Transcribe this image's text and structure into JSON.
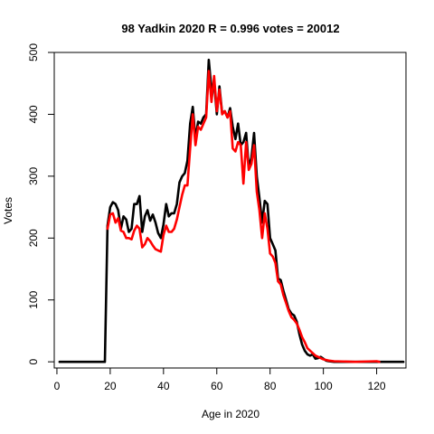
{
  "chart_data": {
    "type": "line",
    "title": "98 Yadkin 2020 R = 0.996 votes = 20012",
    "xlabel": "Age in 2020",
    "ylabel": "Votes",
    "xlim": [
      -1,
      131
    ],
    "ylim": [
      -10,
      500
    ],
    "x_ticks": [
      0,
      20,
      40,
      60,
      80,
      100,
      120
    ],
    "y_ticks": [
      0,
      100,
      200,
      300,
      400,
      500
    ],
    "grid": false,
    "legend": "none",
    "series": [
      {
        "color": "#000000",
        "points": [
          [
            1,
            0
          ],
          [
            18,
            0
          ],
          [
            19,
            220
          ],
          [
            20,
            250
          ],
          [
            21,
            258
          ],
          [
            22,
            255
          ],
          [
            23,
            245
          ],
          [
            24,
            215
          ],
          [
            25,
            235
          ],
          [
            26,
            230
          ],
          [
            27,
            210
          ],
          [
            28,
            215
          ],
          [
            29,
            255
          ],
          [
            30,
            255
          ],
          [
            31,
            268
          ],
          [
            32,
            210
          ],
          [
            33,
            235
          ],
          [
            34,
            245
          ],
          [
            35,
            228
          ],
          [
            36,
            238
          ],
          [
            37,
            225
          ],
          [
            38,
            208
          ],
          [
            39,
            200
          ],
          [
            40,
            222
          ],
          [
            41,
            255
          ],
          [
            42,
            235
          ],
          [
            43,
            240
          ],
          [
            44,
            240
          ],
          [
            45,
            255
          ],
          [
            46,
            290
          ],
          [
            47,
            300
          ],
          [
            48,
            305
          ],
          [
            49,
            325
          ],
          [
            50,
            385
          ],
          [
            51,
            412
          ],
          [
            52,
            360
          ],
          [
            53,
            388
          ],
          [
            54,
            385
          ],
          [
            55,
            395
          ],
          [
            56,
            400
          ],
          [
            57,
            488
          ],
          [
            58,
            440
          ],
          [
            59,
            452
          ],
          [
            60,
            400
          ],
          [
            61,
            445
          ],
          [
            62,
            402
          ],
          [
            63,
            405
          ],
          [
            64,
            395
          ],
          [
            65,
            410
          ],
          [
            66,
            380
          ],
          [
            67,
            360
          ],
          [
            68,
            385
          ],
          [
            69,
            350
          ],
          [
            70,
            355
          ],
          [
            71,
            370
          ],
          [
            72,
            315
          ],
          [
            73,
            330
          ],
          [
            74,
            370
          ],
          [
            75,
            300
          ],
          [
            76,
            265
          ],
          [
            77,
            225
          ],
          [
            78,
            260
          ],
          [
            79,
            255
          ],
          [
            80,
            200
          ],
          [
            81,
            190
          ],
          [
            82,
            180
          ],
          [
            83,
            135
          ],
          [
            84,
            132
          ],
          [
            85,
            115
          ],
          [
            86,
            100
          ],
          [
            87,
            85
          ],
          [
            88,
            78
          ],
          [
            89,
            75
          ],
          [
            90,
            65
          ],
          [
            91,
            45
          ],
          [
            92,
            28
          ],
          [
            93,
            18
          ],
          [
            94,
            12
          ],
          [
            95,
            10
          ],
          [
            96,
            12
          ],
          [
            97,
            5
          ],
          [
            98,
            6
          ],
          [
            99,
            8
          ],
          [
            100,
            5
          ],
          [
            101,
            2
          ],
          [
            102,
            1
          ],
          [
            104,
            0
          ],
          [
            130,
            0
          ]
        ]
      },
      {
        "color": "#ff0000",
        "points": [
          [
            19,
            215
          ],
          [
            20,
            238
          ],
          [
            21,
            240
          ],
          [
            22,
            225
          ],
          [
            23,
            232
          ],
          [
            24,
            212
          ],
          [
            25,
            210
          ],
          [
            26,
            200
          ],
          [
            27,
            200
          ],
          [
            28,
            198
          ],
          [
            29,
            212
          ],
          [
            30,
            220
          ],
          [
            31,
            215
          ],
          [
            32,
            185
          ],
          [
            33,
            190
          ],
          [
            34,
            200
          ],
          [
            35,
            195
          ],
          [
            36,
            188
          ],
          [
            37,
            182
          ],
          [
            38,
            180
          ],
          [
            39,
            178
          ],
          [
            40,
            205
          ],
          [
            41,
            220
          ],
          [
            42,
            210
          ],
          [
            43,
            210
          ],
          [
            44,
            215
          ],
          [
            45,
            230
          ],
          [
            46,
            250
          ],
          [
            47,
            270
          ],
          [
            48,
            285
          ],
          [
            49,
            285
          ],
          [
            50,
            345
          ],
          [
            51,
            400
          ],
          [
            52,
            350
          ],
          [
            53,
            380
          ],
          [
            54,
            375
          ],
          [
            55,
            385
          ],
          [
            56,
            395
          ],
          [
            57,
            470
          ],
          [
            58,
            420
          ],
          [
            59,
            462
          ],
          [
            60,
            405
          ],
          [
            61,
            440
          ],
          [
            62,
            400
          ],
          [
            63,
            405
          ],
          [
            64,
            395
          ],
          [
            65,
            405
          ],
          [
            66,
            345
          ],
          [
            67,
            340
          ],
          [
            68,
            355
          ],
          [
            69,
            350
          ],
          [
            70,
            288
          ],
          [
            71,
            355
          ],
          [
            72,
            310
          ],
          [
            73,
            320
          ],
          [
            74,
            350
          ],
          [
            75,
            275
          ],
          [
            76,
            245
          ],
          [
            77,
            200
          ],
          [
            78,
            240
          ],
          [
            79,
            215
          ],
          [
            80,
            175
          ],
          [
            81,
            170
          ],
          [
            82,
            160
          ],
          [
            83,
            130
          ],
          [
            84,
            125
          ],
          [
            85,
            108
          ],
          [
            86,
            95
          ],
          [
            87,
            82
          ],
          [
            88,
            72
          ],
          [
            89,
            68
          ],
          [
            90,
            62
          ],
          [
            91,
            52
          ],
          [
            92,
            40
          ],
          [
            93,
            32
          ],
          [
            94,
            22
          ],
          [
            95,
            18
          ],
          [
            96,
            14
          ],
          [
            97,
            10
          ],
          [
            98,
            8
          ],
          [
            99,
            6
          ],
          [
            100,
            4
          ],
          [
            101,
            3
          ],
          [
            102,
            2
          ],
          [
            104,
            1
          ],
          [
            112,
            0
          ],
          [
            120,
            1
          ],
          [
            121,
            0
          ]
        ]
      }
    ]
  }
}
